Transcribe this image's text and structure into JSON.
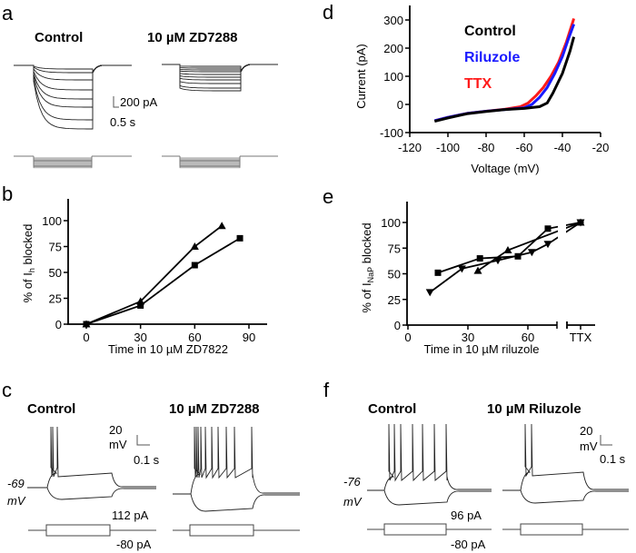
{
  "panel_letters": {
    "a": "a",
    "b": "b",
    "c": "c",
    "d": "d",
    "e": "e",
    "f": "f"
  },
  "panel_a": {
    "title_left": "Control",
    "title_right": "10 µM ZD7288",
    "scale_current": "200 pA",
    "scale_time": "0.5 s"
  },
  "panel_c": {
    "title_left": "Control",
    "title_right": "10 µM ZD7288",
    "scale_voltage_1": "20",
    "scale_voltage_2": "mV",
    "scale_time": "0.1 s",
    "rest_1": "-69",
    "rest_2": "mV",
    "current_high": "112 pA",
    "current_low": "-80 pA"
  },
  "panel_f": {
    "title_left": "Control",
    "title_right": "10 µM Riluzole",
    "scale_voltage_1": "20",
    "scale_voltage_2": "mV",
    "scale_time": "0.1 s",
    "rest_1": "-76",
    "rest_2": "mV",
    "current_high": "96 pA",
    "current_low": "-80 pA"
  },
  "chart_data": [
    {
      "panel": "b",
      "type": "line",
      "xlabel": "Time in 10 µM ZD7822",
      "ylabel": {
        "prefix": "% of I",
        "sub": "h",
        "suffix": " blocked"
      },
      "xlim": [
        0,
        90
      ],
      "ylim": [
        0,
        100
      ],
      "xticks": [
        "0",
        "30",
        "60",
        "90"
      ],
      "yticks": [
        "0",
        "25",
        "50",
        "75",
        "100"
      ],
      "series": [
        {
          "marker": "square",
          "x": [
            0,
            30,
            60,
            85
          ],
          "y": [
            0,
            18,
            57,
            83
          ]
        },
        {
          "marker": "triangle-up",
          "x": [
            0,
            30,
            60,
            75
          ],
          "y": [
            0,
            22,
            75,
            95
          ]
        }
      ]
    },
    {
      "panel": "d",
      "type": "line",
      "xlabel": "Voltage (mV)",
      "ylabel": "Current (pA)",
      "xlim": [
        -120,
        -20
      ],
      "ylim": [
        -100,
        300
      ],
      "xticks": [
        "-120",
        "-100",
        "-80",
        "-60",
        "-40",
        "-20"
      ],
      "yticks": [
        "-100",
        "0",
        "100",
        "200",
        "300"
      ],
      "legend_placement": "top-left-inside",
      "series": [
        {
          "name": "Control",
          "color": "#000000",
          "points": [
            [
              -107,
              -60
            ],
            [
              -100,
              -48
            ],
            [
              -90,
              -33
            ],
            [
              -80,
              -25
            ],
            [
              -70,
              -18
            ],
            [
              -60,
              -14
            ],
            [
              -52,
              -8
            ],
            [
              -48,
              5
            ],
            [
              -45,
              40
            ],
            [
              -40,
              110
            ],
            [
              -36,
              190
            ],
            [
              -34,
              240
            ]
          ]
        },
        {
          "name": "Riluzole",
          "color": "#1a1aff",
          "points": [
            [
              -107,
              -58
            ],
            [
              -100,
              -46
            ],
            [
              -90,
              -32
            ],
            [
              -80,
              -24
            ],
            [
              -70,
              -18
            ],
            [
              -60,
              -12
            ],
            [
              -56,
              0
            ],
            [
              -52,
              25
            ],
            [
              -48,
              60
            ],
            [
              -44,
              110
            ],
            [
              -40,
              170
            ],
            [
              -37,
              230
            ],
            [
              -34,
              285
            ]
          ]
        },
        {
          "name": "TTX",
          "color": "#ff1a1a",
          "points": [
            [
              -107,
              -58
            ],
            [
              -100,
              -46
            ],
            [
              -90,
              -32
            ],
            [
              -80,
              -24
            ],
            [
              -70,
              -17
            ],
            [
              -62,
              -8
            ],
            [
              -58,
              5
            ],
            [
              -54,
              30
            ],
            [
              -50,
              60
            ],
            [
              -46,
              100
            ],
            [
              -42,
              150
            ],
            [
              -38,
              220
            ],
            [
              -34,
              305
            ]
          ]
        }
      ]
    },
    {
      "panel": "e",
      "type": "line",
      "xlabel": "Time in 10 µM riluzole",
      "ylabel": {
        "prefix": "% of I",
        "sub": "NaP",
        "suffix": " blocked"
      },
      "xlim": [
        0,
        75
      ],
      "ylim": [
        0,
        100
      ],
      "axis_break": true,
      "xticks": [
        "0",
        "30",
        "60",
        "TTX"
      ],
      "yticks": [
        "0",
        "25",
        "50",
        "75",
        "100"
      ],
      "series": [
        {
          "marker": "square",
          "x": [
            15,
            36,
            55,
            70,
            "TTX"
          ],
          "y": [
            51,
            65,
            67,
            94,
            100
          ]
        },
        {
          "marker": "triangle-down",
          "x": [
            11,
            27,
            45,
            62,
            70,
            "TTX"
          ],
          "y": [
            32,
            55,
            63,
            71,
            79,
            100
          ]
        },
        {
          "marker": "triangle-up",
          "x": [
            35,
            50,
            "TTX"
          ],
          "y": [
            53,
            73,
            100
          ]
        }
      ]
    }
  ]
}
